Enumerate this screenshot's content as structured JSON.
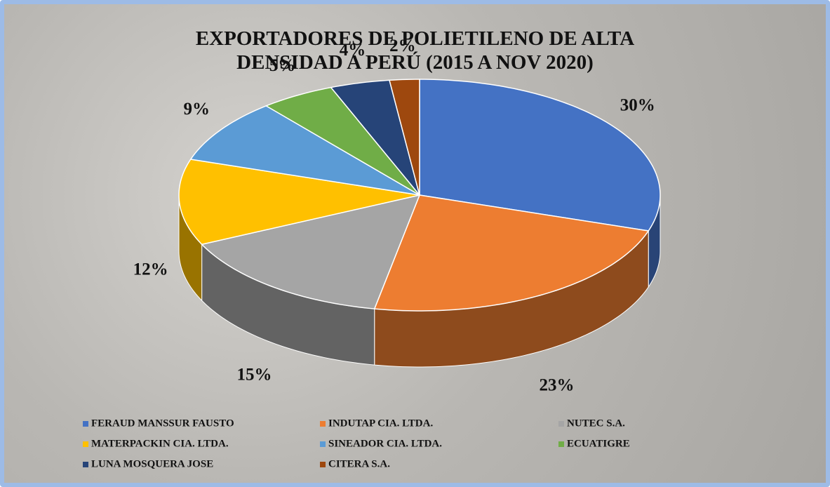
{
  "chart_data": {
    "type": "pie3d",
    "title": "EXPORTADORES DE POLIETILENO DE ALTA DENSIDAD A PERÚ (2015 A NOV 2020)",
    "categories": [
      "FERAUD MANSSUR FAUSTO",
      "INDUTAP CIA. LTDA.",
      "NUTEC S.A.",
      "MATERPACKIN CIA. LTDA.",
      "SINEADOR CIA. LTDA.",
      "ECUATIGRE",
      "LUNA MOSQUERA JOSE",
      "CITERA S.A."
    ],
    "values": [
      30,
      23,
      15,
      12,
      9,
      5,
      4,
      2
    ],
    "value_labels": [
      "30%",
      "23%",
      "15%",
      "12%",
      "9%",
      "5%",
      "4%",
      "2%"
    ],
    "colors": [
      "#4472c4",
      "#ed7d31",
      "#a5a5a5",
      "#ffc000",
      "#5b9bd5",
      "#70ad47",
      "#264478",
      "#9e480e"
    ],
    "legend": "bottom"
  }
}
